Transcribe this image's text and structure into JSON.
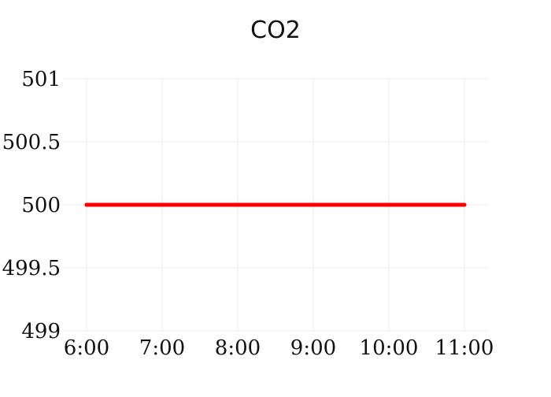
{
  "chart_data": {
    "type": "line",
    "title": "CO2",
    "xlabel": "",
    "ylabel": "",
    "x": [
      "6:00",
      "7:00",
      "8:00",
      "9:00",
      "10:00",
      "11:00"
    ],
    "x_ticks": [
      "6:00",
      "7:00",
      "8:00",
      "9:00",
      "10:00",
      "11:00"
    ],
    "y_ticks": [
      "499",
      "499.5",
      "500",
      "500.5",
      "501"
    ],
    "ylim": [
      499,
      501
    ],
    "grid": true,
    "legend": false,
    "series": [
      {
        "values": [
          500,
          500,
          500,
          500,
          500,
          500
        ],
        "color": "#ff0000"
      }
    ]
  }
}
